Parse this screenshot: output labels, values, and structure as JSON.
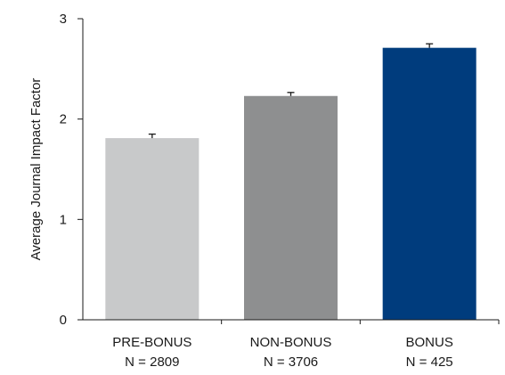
{
  "chart_data": {
    "type": "bar",
    "title": "",
    "xlabel": "",
    "ylabel": "Average Journal Impact Factor",
    "ylim": [
      0,
      3
    ],
    "yticks": [
      0,
      1,
      2,
      3
    ],
    "grid": false,
    "categories": [
      "PRE-BONUS",
      "NON-BONUS",
      "BONUS"
    ],
    "category_n": [
      "N = 2809",
      "N = 3706",
      "N = 425"
    ],
    "values": [
      1.81,
      2.23,
      2.71
    ],
    "errors": [
      0.04,
      0.035,
      0.04
    ],
    "colors": [
      "#c8c9ca",
      "#8e8f90",
      "#003c7d"
    ]
  }
}
